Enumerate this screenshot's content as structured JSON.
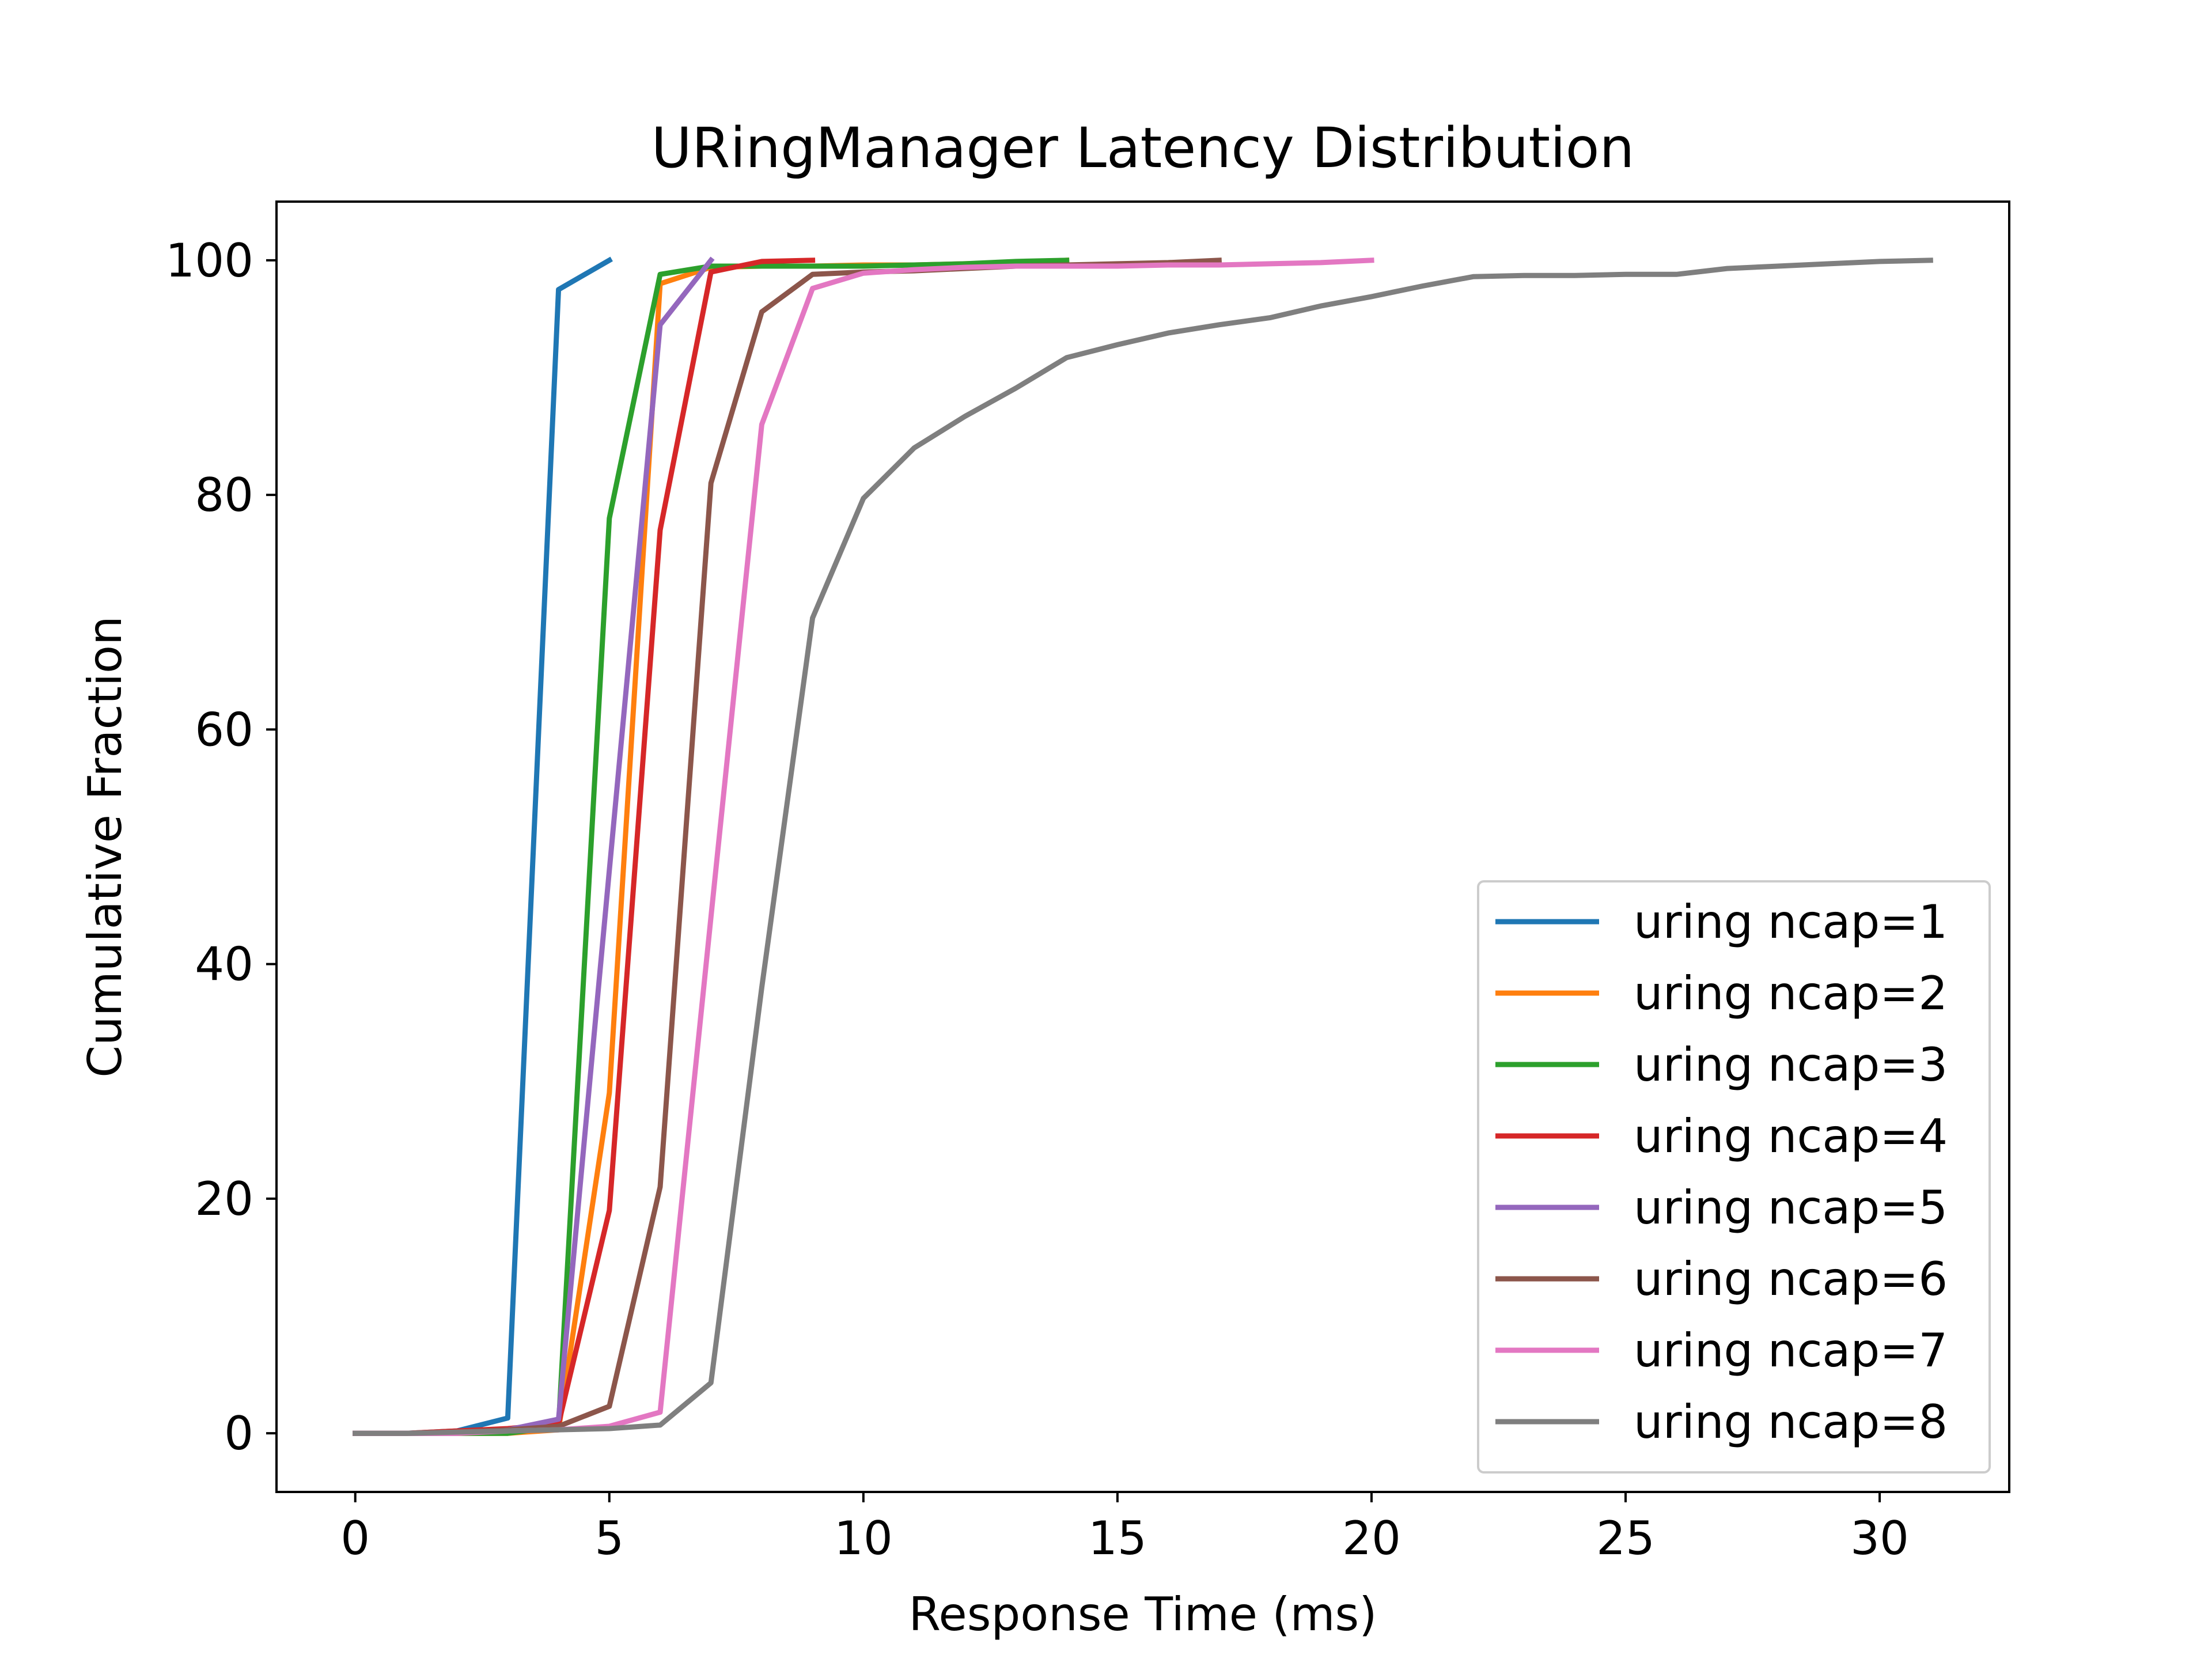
{
  "chart_data": {
    "type": "line",
    "title": "URingManager Latency Distribution",
    "xlabel": "Response Time (ms)",
    "ylabel": "Cumulative Fraction",
    "xlim": [
      -1.55,
      32.55
    ],
    "ylim": [
      -5,
      105
    ],
    "xticks": [
      0,
      5,
      10,
      15,
      20,
      25,
      30
    ],
    "yticks": [
      0,
      20,
      40,
      60,
      80,
      100
    ],
    "grid": false,
    "legend_position": "lower-right",
    "series": [
      {
        "name": "uring ncap=1",
        "color": "#1f77b4",
        "x": [
          0,
          1,
          2,
          3,
          4,
          5
        ],
        "y": [
          0,
          0,
          0.2,
          1.3,
          97.5,
          100
        ]
      },
      {
        "name": "uring ncap=2",
        "color": "#ff7f0e",
        "x": [
          0,
          1,
          2,
          3,
          4,
          5,
          6,
          7,
          8,
          9,
          10,
          11,
          12,
          13,
          14
        ],
        "y": [
          0,
          0,
          0,
          0,
          0.3,
          29,
          98,
          99.4,
          99.5,
          99.5,
          99.6,
          99.6,
          99.7,
          99.8,
          100
        ]
      },
      {
        "name": "uring ncap=3",
        "color": "#2ca02c",
        "x": [
          0,
          1,
          2,
          3,
          4,
          5,
          6,
          7,
          8,
          9,
          10,
          11,
          12,
          13,
          14
        ],
        "y": [
          0,
          0,
          0,
          0,
          0.6,
          78,
          98.8,
          99.5,
          99.5,
          99.5,
          99.5,
          99.6,
          99.7,
          99.9,
          100
        ]
      },
      {
        "name": "uring ncap=4",
        "color": "#d62728",
        "x": [
          0,
          1,
          2,
          3,
          4,
          5,
          6,
          7,
          8,
          9
        ],
        "y": [
          0,
          0,
          0.2,
          0.4,
          0.8,
          19,
          77,
          99,
          99.9,
          100
        ]
      },
      {
        "name": "uring ncap=5",
        "color": "#9467bd",
        "x": [
          0,
          1,
          2,
          3,
          4,
          5,
          6,
          7
        ],
        "y": [
          0,
          0,
          0,
          0.3,
          1.2,
          48,
          94.5,
          100
        ]
      },
      {
        "name": "uring ncap=6",
        "color": "#8c564b",
        "x": [
          0,
          1,
          2,
          3,
          4,
          5,
          6,
          7,
          8,
          9,
          10,
          11,
          12,
          13,
          14,
          15,
          16,
          17
        ],
        "y": [
          0,
          0,
          0.1,
          0.3,
          0.6,
          2.3,
          21,
          81,
          95.6,
          98.8,
          99,
          99.1,
          99.3,
          99.5,
          99.6,
          99.7,
          99.8,
          100
        ]
      },
      {
        "name": "uring ncap=7",
        "color": "#e377c2",
        "x": [
          0,
          1,
          2,
          3,
          4,
          5,
          6,
          7,
          8,
          9,
          10,
          11,
          12,
          13,
          14,
          15,
          16,
          17,
          18,
          19,
          20
        ],
        "y": [
          0,
          0,
          0,
          0.2,
          0.3,
          0.6,
          1.8,
          44,
          86,
          97.6,
          98.9,
          99.2,
          99.4,
          99.5,
          99.5,
          99.5,
          99.6,
          99.6,
          99.7,
          99.8,
          100
        ]
      },
      {
        "name": "uring ncap=8",
        "color": "#7f7f7f",
        "x": [
          0,
          1,
          2,
          3,
          4,
          5,
          6,
          7,
          8,
          9,
          10,
          11,
          12,
          13,
          14,
          15,
          16,
          17,
          18,
          19,
          20,
          21,
          22,
          23,
          24,
          25,
          26,
          27,
          28,
          29,
          30,
          31
        ],
        "y": [
          0,
          0,
          0.1,
          0.2,
          0.3,
          0.4,
          0.7,
          4.3,
          38,
          69.5,
          79.7,
          84,
          86.7,
          89.1,
          91.7,
          92.8,
          93.8,
          94.5,
          95.1,
          96.1,
          96.9,
          97.8,
          98.6,
          98.7,
          98.7,
          98.8,
          98.8,
          99.3,
          99.5,
          99.7,
          99.9,
          100
        ]
      }
    ]
  }
}
